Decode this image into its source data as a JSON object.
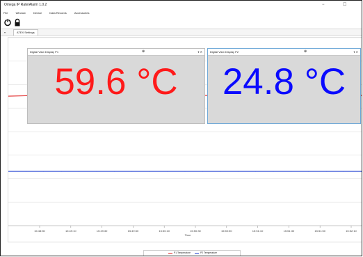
{
  "app": {
    "title": "Omega IP Rate/Alarm 1.0.2",
    "window_controls": [
      "−",
      "☐"
    ]
  },
  "menu": [
    "File",
    "Window",
    "Device",
    "Data Records",
    "Accessories"
  ],
  "toolbar": {
    "icons": [
      "power-icon",
      "lock-icon"
    ]
  },
  "tab": {
    "label": "ATEX Settings"
  },
  "digital_views": [
    {
      "header": "Digital View Display P1",
      "value": "59.6 °C",
      "color": "#ff1a1a"
    },
    {
      "header": "Digital View Display P2",
      "value": "24.8 °C",
      "color": "#0a0aff"
    }
  ],
  "chart_data": {
    "type": "line",
    "xlabel": "Time",
    "ylabel": "",
    "categories": [
      "15:48:40",
      "15:48:50",
      "15:49:00",
      "15:49:10",
      "15:49:20",
      "15:49:30",
      "15:49:40",
      "15:49:50",
      "15:50:00",
      "15:50:10",
      "15:50:20",
      "15:50:30",
      "15:50:40",
      "15:50:50",
      "15:51:00",
      "15:51:10",
      "15:51:20",
      "15:51:30",
      "15:51:40",
      "15:51:50",
      "15:52:00"
    ],
    "x_tick_labels": [
      "15:48:50",
      "15:49:10",
      "15:49:30",
      "15:49:50",
      "15:50:10",
      "15:50:30",
      "15:50:50",
      "15:51:10",
      "15:51:30",
      "15:51:50",
      "15:52:10"
    ],
    "grid": true,
    "series": [
      {
        "name": "P1 Temperature",
        "color": "#e02020",
        "values": [
          59.2,
          59.4,
          59.5,
          59.5,
          59.6,
          59.6,
          59.6,
          59.6,
          59.5,
          59.6,
          59.6,
          59.6,
          59.5,
          59.6,
          59.6,
          59.6,
          59.6,
          59.6,
          59.6,
          59.6,
          59.6
        ]
      },
      {
        "name": "P2 Temperature",
        "color": "#2040d0",
        "values": [
          24.8,
          24.8,
          24.8,
          24.8,
          24.8,
          24.8,
          24.8,
          24.8,
          24.8,
          24.8,
          24.8,
          24.8,
          24.8,
          24.8,
          24.8,
          24.8,
          24.8,
          24.8,
          24.8,
          24.8,
          24.8
        ]
      }
    ]
  }
}
